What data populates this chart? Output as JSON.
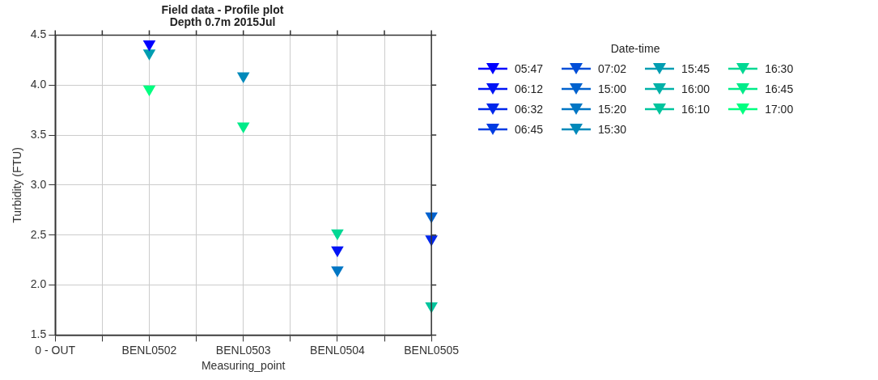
{
  "chart_data": {
    "type": "scatter",
    "title": "Field data - Profile plot\nDepth 0.7m 2015Jul",
    "xlabel": "Measuring_point",
    "ylabel": "Turbidity (FTU)",
    "legend_title": "Date-time",
    "legend": "top right",
    "grid": true,
    "marker": "triangle",
    "categories": [
      "0 - OUT",
      null,
      "BENL0502",
      null,
      "BENL0503",
      null,
      "BENL0504",
      null,
      "BENL0505"
    ],
    "ylim": [
      1.5,
      4.5
    ],
    "yticks": [
      1.5,
      {
        "value": 2,
        "label": "2.0"
      },
      2.5,
      {
        "value": 3,
        "label": "3.0"
      },
      3.5,
      {
        "value": 4,
        "label": "4.0"
      },
      4.5
    ],
    "series": [
      {
        "name": "05:47",
        "color": "#0000ff",
        "values": [
          null,
          null,
          4.41,
          null,
          null,
          null,
          null,
          null,
          null
        ]
      },
      {
        "name": "06:12",
        "color": "#0014f5",
        "values": [
          null,
          null,
          null,
          null,
          null,
          null,
          2.35,
          null,
          null
        ]
      },
      {
        "name": "06:32",
        "color": "#0027eb",
        "values": [
          null,
          null,
          null,
          null,
          null,
          null,
          null,
          null,
          2.46
        ]
      },
      {
        "name": "06:45",
        "color": "#003be2",
        "values": [
          null,
          null,
          null,
          null,
          null,
          null,
          null,
          null,
          null
        ]
      },
      {
        "name": "07:02",
        "color": "#004ed8",
        "values": [
          null,
          null,
          null,
          null,
          null,
          null,
          null,
          null,
          null
        ]
      },
      {
        "name": "15:00",
        "color": "#0062ce",
        "values": [
          null,
          null,
          null,
          null,
          null,
          null,
          null,
          null,
          2.69
        ]
      },
      {
        "name": "15:20",
        "color": "#0076c4",
        "values": [
          null,
          null,
          null,
          null,
          null,
          null,
          2.15,
          null,
          null
        ]
      },
      {
        "name": "15:30",
        "color": "#0089ba",
        "values": [
          null,
          null,
          null,
          null,
          4.09,
          null,
          null,
          null,
          null
        ]
      },
      {
        "name": "15:45",
        "color": "#009db1",
        "values": [
          null,
          null,
          4.32,
          null,
          null,
          null,
          null,
          null,
          null
        ]
      },
      {
        "name": "16:00",
        "color": "#00b1a7",
        "values": [
          null,
          null,
          null,
          null,
          null,
          null,
          null,
          null,
          null
        ]
      },
      {
        "name": "16:10",
        "color": "#00c49d",
        "values": [
          null,
          null,
          null,
          null,
          null,
          null,
          null,
          null,
          1.79
        ]
      },
      {
        "name": "16:30",
        "color": "#00d893",
        "values": [
          null,
          null,
          null,
          null,
          null,
          null,
          2.52,
          null,
          null
        ]
      },
      {
        "name": "16:45",
        "color": "#00eb89",
        "values": [
          null,
          null,
          null,
          null,
          3.59,
          null,
          null,
          null,
          null
        ]
      },
      {
        "name": "17:00",
        "color": "#00ff80",
        "values": [
          null,
          null,
          3.96,
          null,
          null,
          null,
          null,
          null,
          null
        ]
      }
    ]
  }
}
